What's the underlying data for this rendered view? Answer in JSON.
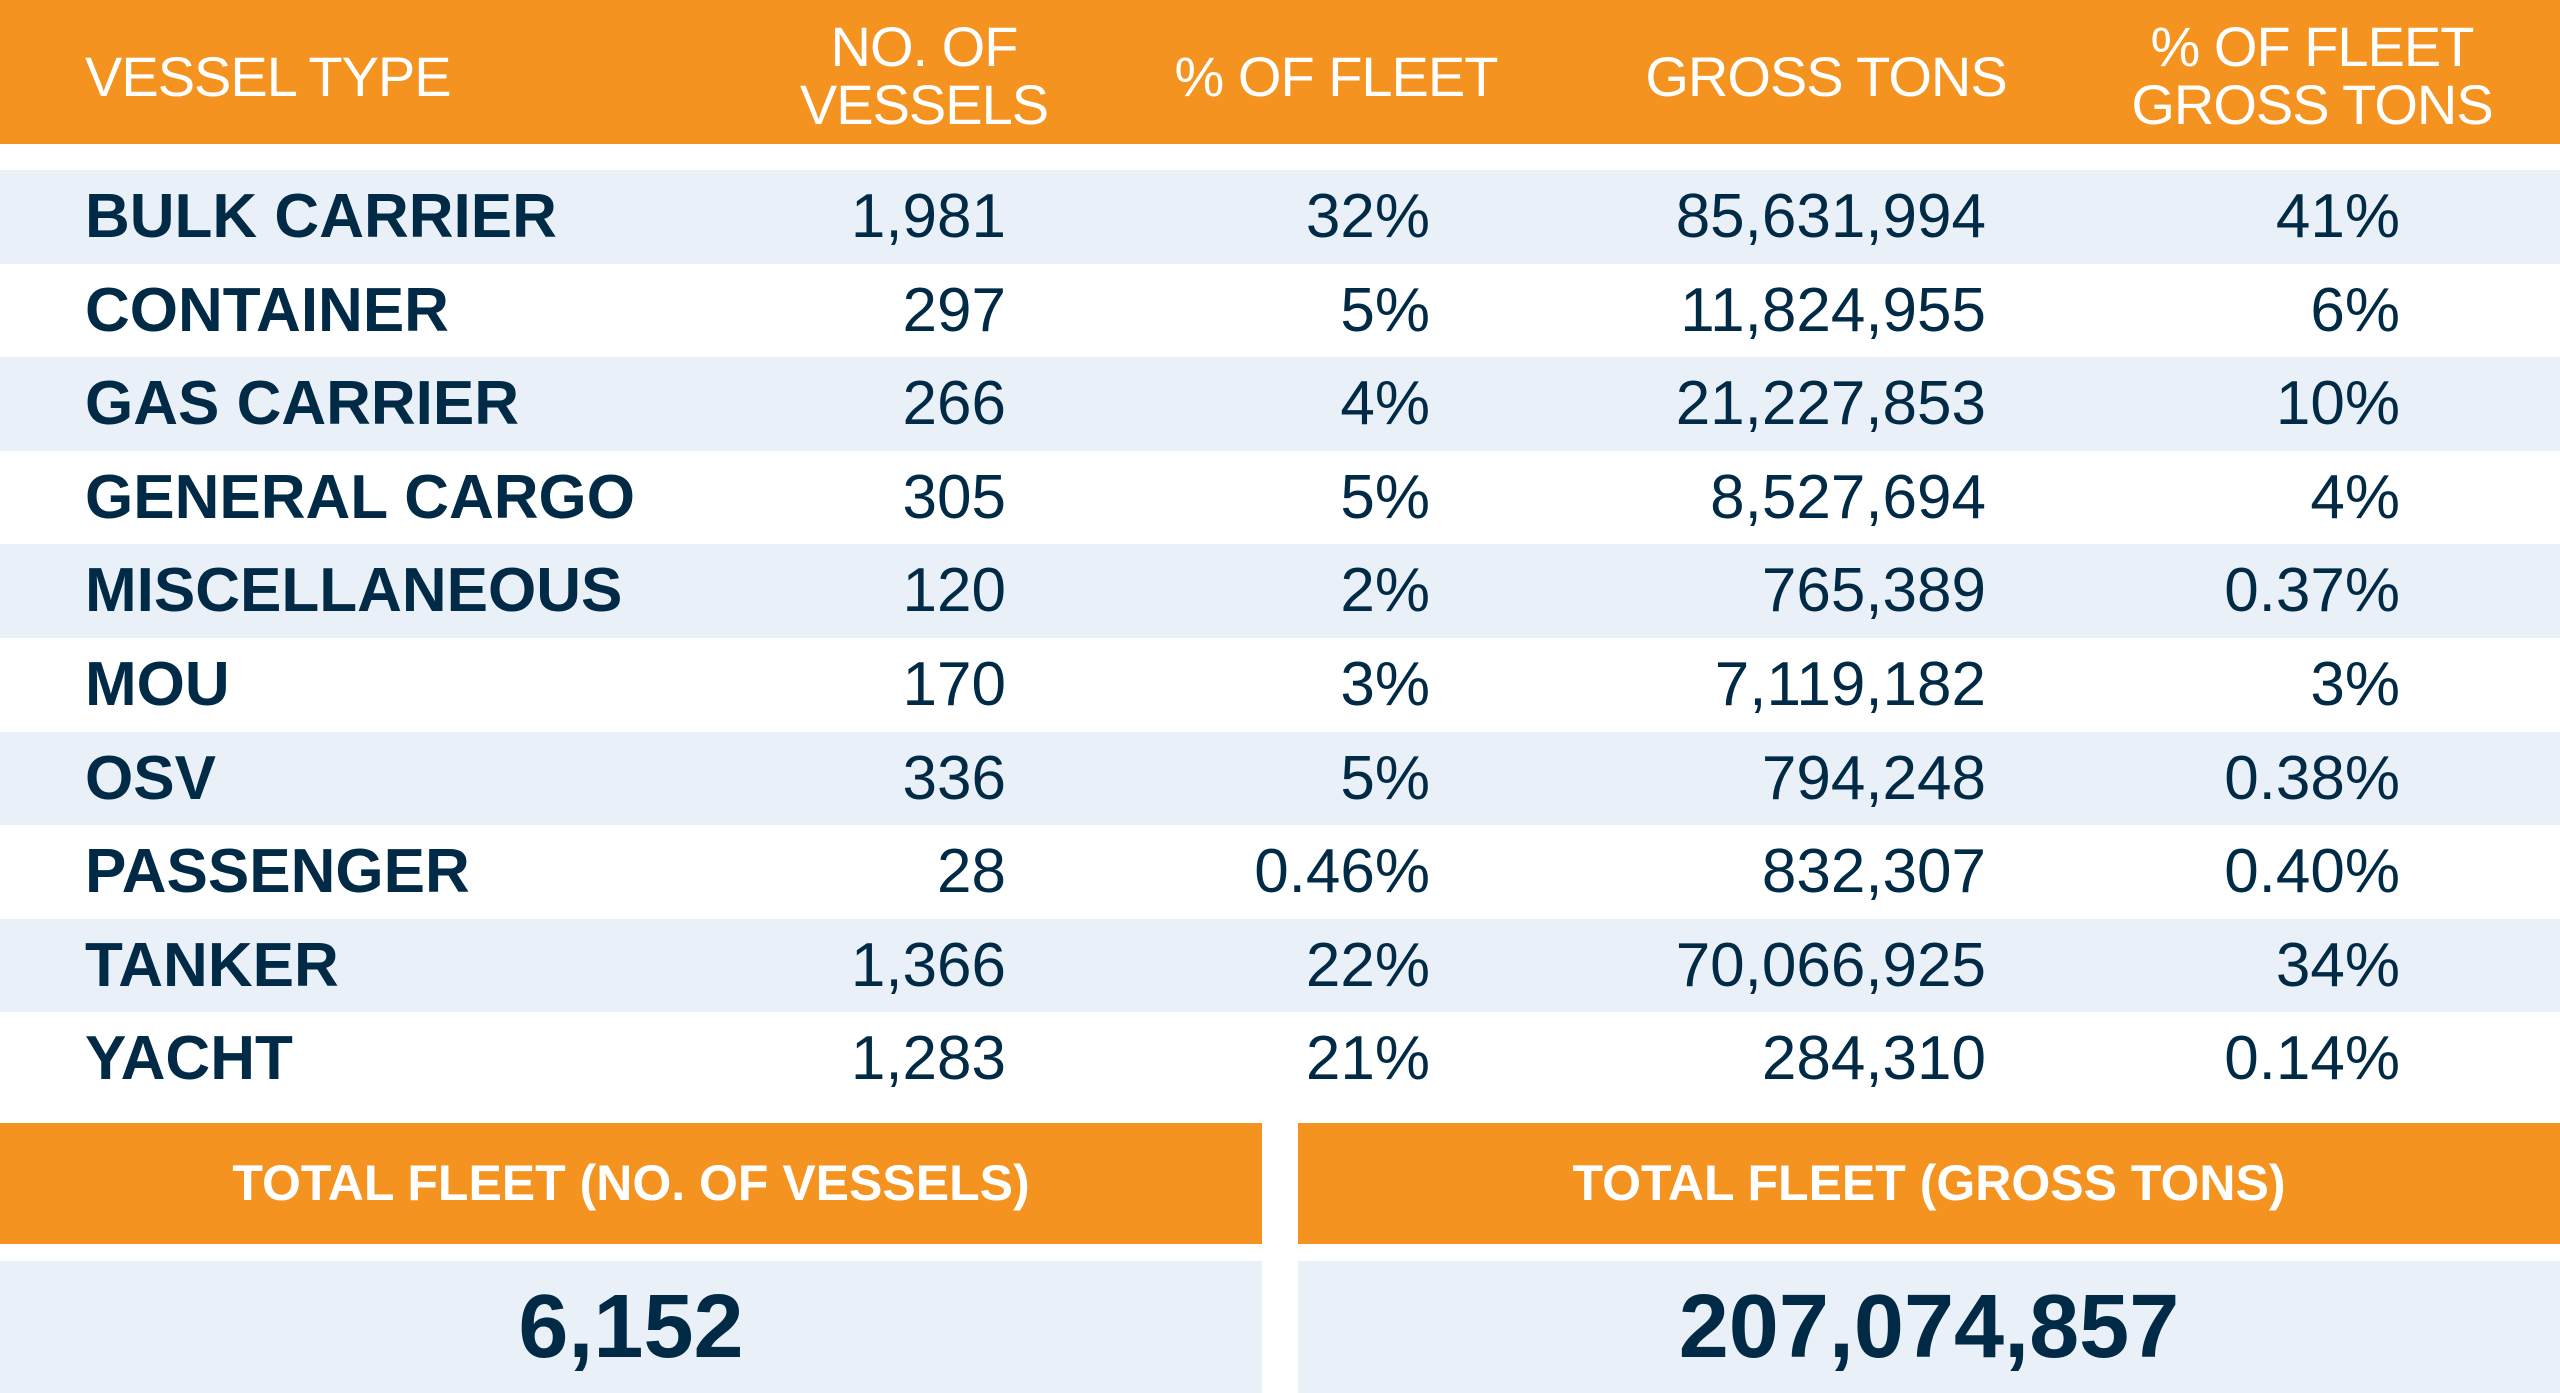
{
  "colors": {
    "accent": "#F4931F",
    "text": "#002A45",
    "stripe": "#E9F0F7"
  },
  "headers": {
    "vessel_type": "VESSEL TYPE",
    "no_vessels_1": "NO. OF",
    "no_vessels_2": "VESSELS",
    "pct_fleet": "% OF FLEET",
    "gross_tons": "GROSS TONS",
    "pct_gross_1": "% OF FLEET",
    "pct_gross_2": "GROSS TONS"
  },
  "rows": [
    {
      "type": "BULK CARRIER",
      "vessels": "1,981",
      "pct_fleet": "32%",
      "gross_tons": "85,631,994",
      "pct_gross": "41%"
    },
    {
      "type": "CONTAINER",
      "vessels": "297",
      "pct_fleet": "5%",
      "gross_tons": "11,824,955",
      "pct_gross": "6%"
    },
    {
      "type": "GAS CARRIER",
      "vessels": "266",
      "pct_fleet": "4%",
      "gross_tons": "21,227,853",
      "pct_gross": "10%"
    },
    {
      "type": "GENERAL CARGO",
      "vessels": "305",
      "pct_fleet": "5%",
      "gross_tons": "8,527,694",
      "pct_gross": "4%"
    },
    {
      "type": "MISCELLANEOUS",
      "vessels": "120",
      "pct_fleet": "2%",
      "gross_tons": "765,389",
      "pct_gross": "0.37%"
    },
    {
      "type": "MOU",
      "vessels": "170",
      "pct_fleet": "3%",
      "gross_tons": "7,119,182",
      "pct_gross": "3%"
    },
    {
      "type": "OSV",
      "vessels": "336",
      "pct_fleet": "5%",
      "gross_tons": "794,248",
      "pct_gross": "0.38%"
    },
    {
      "type": "PASSENGER",
      "vessels": "28",
      "pct_fleet": "0.46%",
      "gross_tons": "832,307",
      "pct_gross": "0.40%"
    },
    {
      "type": "TANKER",
      "vessels": "1,366",
      "pct_fleet": "22%",
      "gross_tons": "70,066,925",
      "pct_gross": "34%"
    },
    {
      "type": "YACHT",
      "vessels": "1,283",
      "pct_fleet": "21%",
      "gross_tons": "284,310",
      "pct_gross": "0.14%"
    }
  ],
  "totals": {
    "vessels_label": "TOTAL FLEET (NO. OF VESSELS)",
    "vessels_value": "6,152",
    "tons_label": "TOTAL FLEET (GROSS TONS)",
    "tons_value": "207,074,857"
  }
}
